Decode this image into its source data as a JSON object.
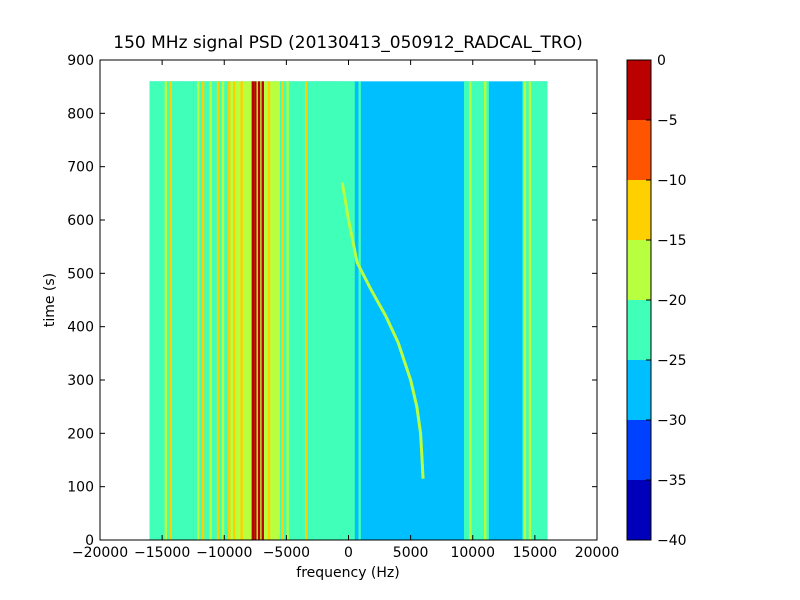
{
  "chart_data": {
    "type": "heatmap",
    "title": "150 MHz signal PSD (20130413_050912_RADCAL_TRO)",
    "xlabel": "frequency (Hz)",
    "ylabel": "time (s)",
    "xlim": [
      -20000,
      20000
    ],
    "ylim": [
      0,
      900
    ],
    "x_ticks": [
      -20000,
      -15000,
      -10000,
      -5000,
      0,
      5000,
      10000,
      15000,
      20000
    ],
    "x_tick_labels": [
      "−20000",
      "−15000",
      "−10000",
      "−5000",
      "0",
      "5000",
      "10000",
      "15000",
      "20000"
    ],
    "y_ticks": [
      0,
      100,
      200,
      300,
      400,
      500,
      600,
      700,
      800,
      900
    ],
    "y_tick_labels": [
      "0",
      "100",
      "200",
      "300",
      "400",
      "500",
      "600",
      "700",
      "800",
      "900"
    ],
    "data_extent": {
      "x": [
        -16000,
        16000
      ],
      "y": [
        0,
        860
      ]
    },
    "background_level": -27,
    "colorbar": {
      "levels": [
        -40,
        -35,
        -30,
        -25,
        -20,
        -15,
        -10,
        -5,
        0
      ],
      "tick_labels": [
        "−40",
        "−35",
        "−30",
        "−25",
        "−20",
        "−15",
        "−10",
        "−5",
        "0"
      ],
      "colors": [
        "#0000bb",
        "#0040ff",
        "#00bfff",
        "#40ffb8",
        "#b8ff40",
        "#ffd000",
        "#ff5500",
        "#bb0000"
      ]
    },
    "bands": [
      {
        "x": [
          -16000,
          -12500
        ],
        "level": -22
      },
      {
        "x": [
          -12500,
          -9500
        ],
        "level": -22
      },
      {
        "x": [
          -9500,
          -5500
        ],
        "level": -20
      },
      {
        "x": [
          -5500,
          -3200
        ],
        "level": -22
      },
      {
        "x": [
          -3200,
          500
        ],
        "level": -24
      },
      {
        "x": [
          9300,
          11300
        ],
        "level": -23
      },
      {
        "x": [
          14000,
          16000
        ],
        "level": -23
      }
    ],
    "lines": [
      {
        "x": -15900,
        "level": -22
      },
      {
        "x": -14700,
        "level": -18
      },
      {
        "x": -14300,
        "level": -14
      },
      {
        "x": -13800,
        "level": -22
      },
      {
        "x": -12100,
        "level": -18
      },
      {
        "x": -11700,
        "level": -14
      },
      {
        "x": -11100,
        "level": -18
      },
      {
        "x": -10500,
        "level": -14
      },
      {
        "x": -10100,
        "level": -18
      },
      {
        "x": -9600,
        "level": -14
      },
      {
        "x": -9200,
        "level": -13
      },
      {
        "x": -8600,
        "level": -12
      },
      {
        "x": -7700,
        "level": -4
      },
      {
        "x": -7500,
        "level": -4
      },
      {
        "x": -7200,
        "level": -2
      },
      {
        "x": -6900,
        "level": -4
      },
      {
        "x": -6400,
        "level": -12
      },
      {
        "x": -5900,
        "level": -18
      },
      {
        "x": -5300,
        "level": -14
      },
      {
        "x": -4900,
        "level": -18
      },
      {
        "x": -4400,
        "level": -22
      },
      {
        "x": -3400,
        "level": -14
      },
      {
        "x": -2800,
        "level": -22
      },
      {
        "x": -2200,
        "level": -22
      },
      {
        "x": -1600,
        "level": -22
      },
      {
        "x": -1000,
        "level": -22
      },
      {
        "x": 400,
        "level": -22
      },
      {
        "x": 900,
        "level": -22
      },
      {
        "x": 9400,
        "level": -22
      },
      {
        "x": 9800,
        "level": -20
      },
      {
        "x": 10500,
        "level": -22
      },
      {
        "x": 11000,
        "level": -20
      },
      {
        "x": 14200,
        "level": -20
      },
      {
        "x": 14600,
        "level": -18
      },
      {
        "x": 15500,
        "level": -22
      }
    ],
    "sweep": {
      "level": -17,
      "points": [
        [
          -500,
          670
        ],
        [
          0,
          600
        ],
        [
          700,
          520
        ],
        [
          1800,
          470
        ],
        [
          3000,
          420
        ],
        [
          4000,
          370
        ],
        [
          5000,
          300
        ],
        [
          5500,
          250
        ],
        [
          5800,
          200
        ],
        [
          5900,
          160
        ],
        [
          6000,
          115
        ]
      ]
    }
  }
}
